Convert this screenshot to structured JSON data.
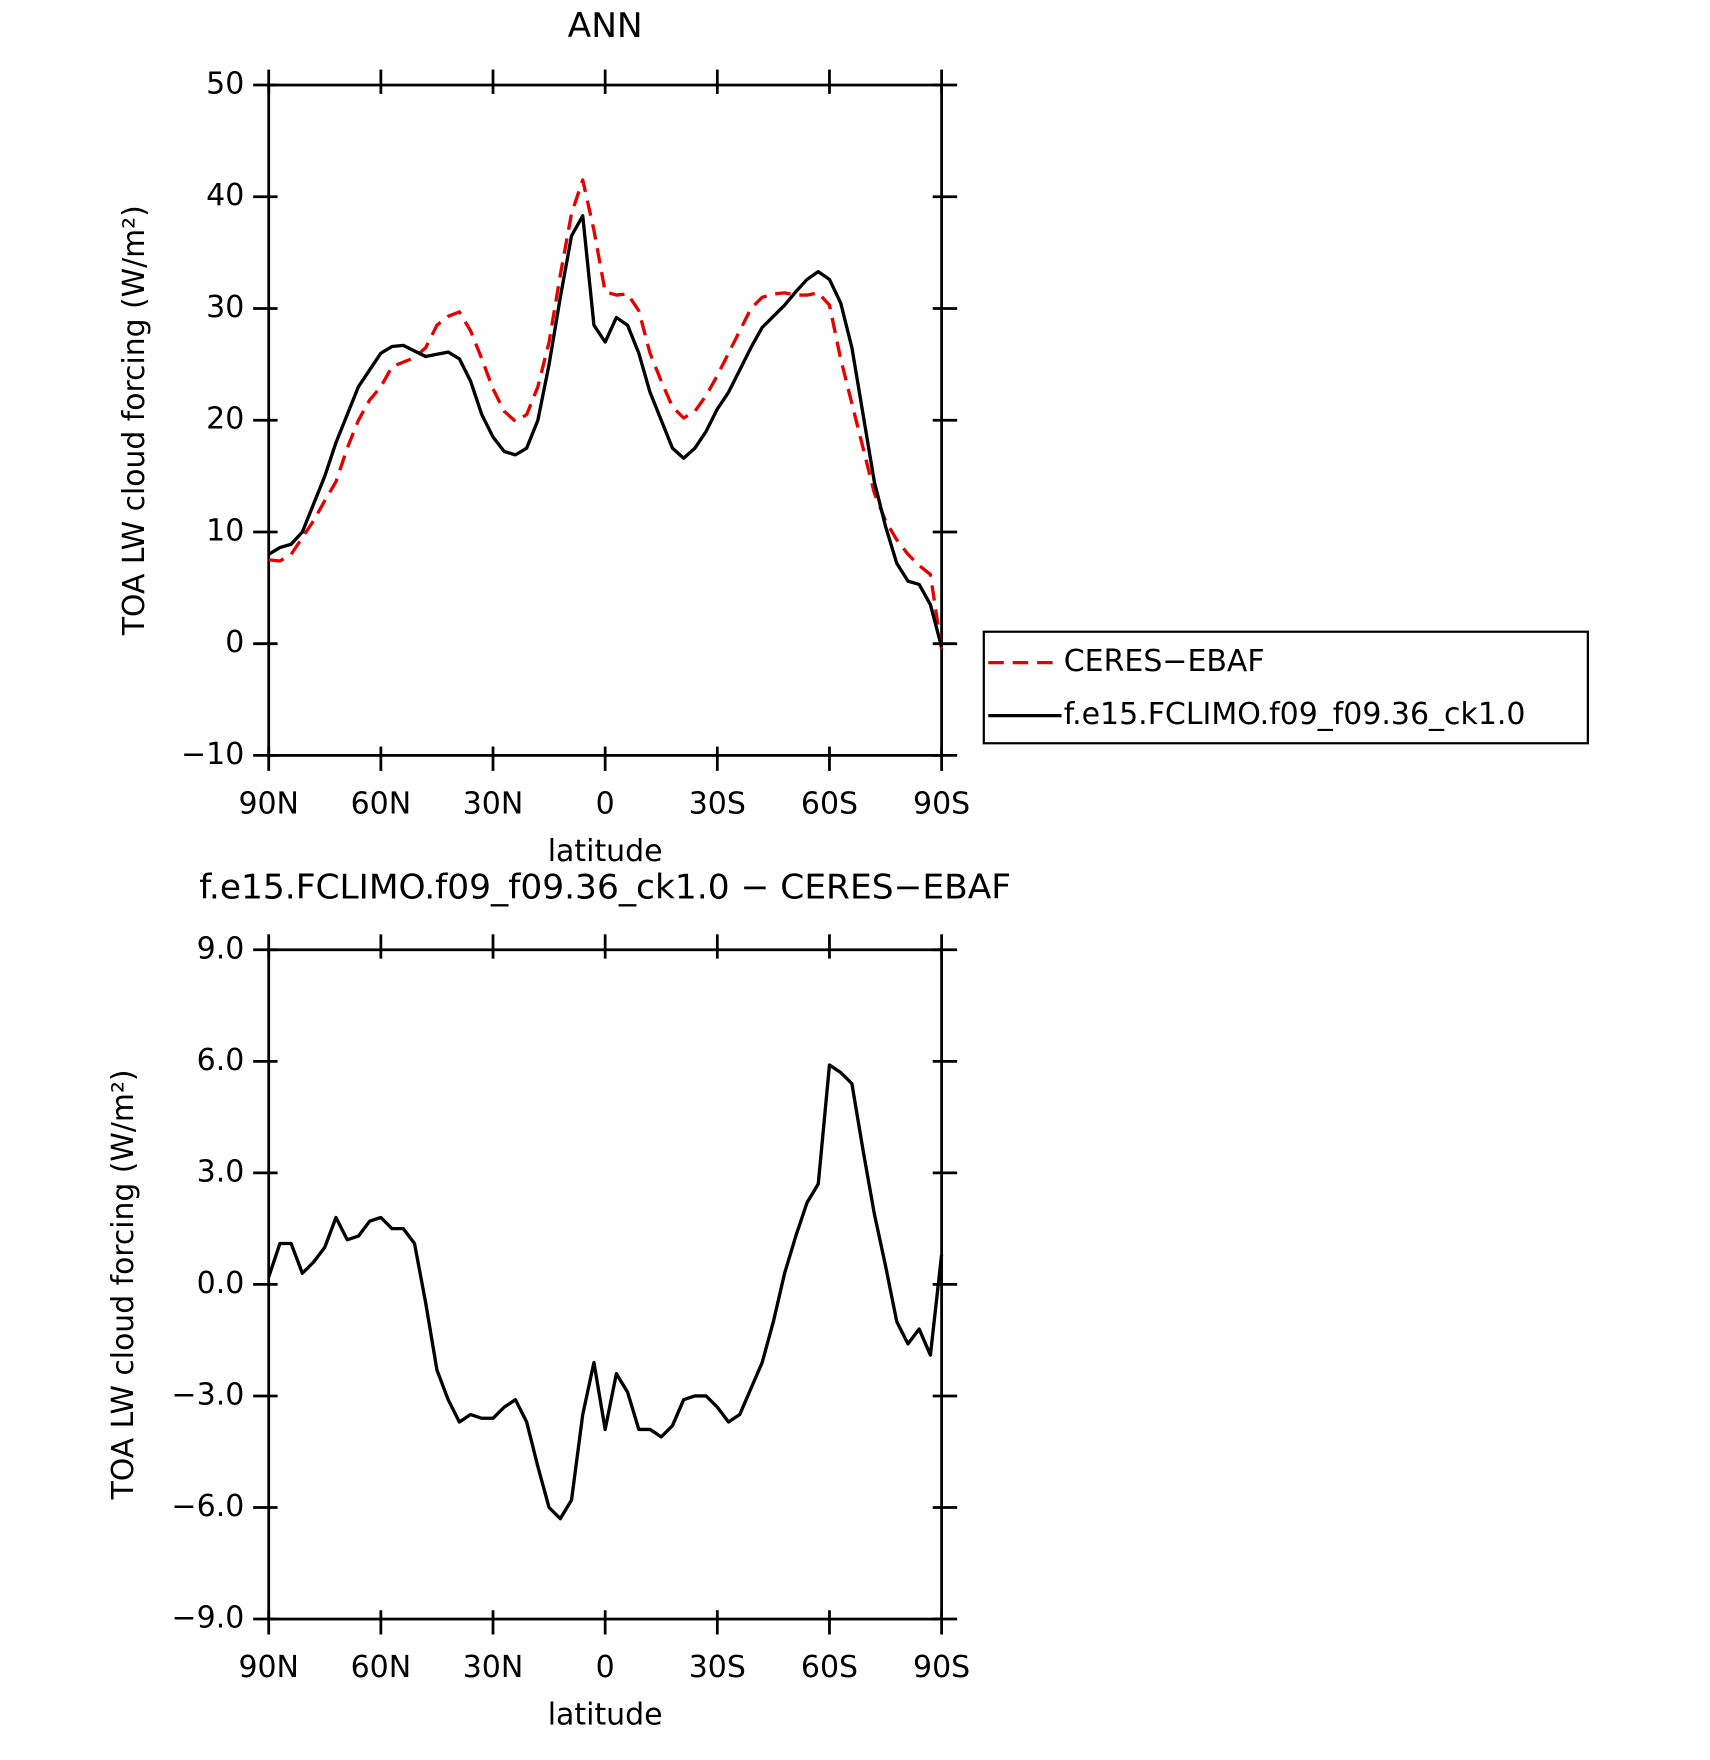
{
  "chart_data": [
    {
      "type": "line",
      "title": "ANN",
      "xlabel": "latitude",
      "ylabel": "TOA LW cloud forcing (W/m²)",
      "x": [
        90,
        87,
        84,
        81,
        78,
        75,
        72,
        69,
        66,
        63,
        60,
        57,
        54,
        51,
        48,
        45,
        42,
        39,
        36,
        33,
        30,
        27,
        24,
        21,
        18,
        15,
        12,
        9,
        6,
        3,
        0,
        -3,
        -6,
        -9,
        -12,
        -15,
        -18,
        -21,
        -24,
        -27,
        -30,
        -33,
        -36,
        -39,
        -42,
        -45,
        -48,
        -51,
        -54,
        -57,
        -60,
        -63,
        -66,
        -69,
        -72,
        -75,
        -78,
        -81,
        -84,
        -87,
        -90
      ],
      "series": [
        {
          "name": "CERES−EBAF",
          "color": "#e60000",
          "dash": "dashed",
          "values": [
            7.5,
            7.4,
            8.0,
            9.5,
            11,
            12.8,
            14.5,
            17.5,
            20,
            21.8,
            23,
            24.8,
            25.2,
            25.6,
            26.5,
            28.5,
            29.3,
            29.7,
            28,
            25.5,
            22.8,
            20.8,
            19.9,
            20.5,
            23,
            27,
            33,
            38.5,
            41.5,
            37,
            31.5,
            31.2,
            31.3,
            29.8,
            26,
            23.5,
            21.2,
            20.2,
            20.8,
            22.2,
            24,
            26,
            28,
            30,
            31,
            31.3,
            31.4,
            31.2,
            31.2,
            31.4,
            30.3,
            25.5,
            21.5,
            17.5,
            13.5,
            11,
            9.3,
            8,
            7,
            6.2,
            -0.5
          ]
        },
        {
          "name": "f.e15.FCLIMO.f09_f09.36_ck1.0",
          "color": "#000000",
          "dash": "solid",
          "values": [
            8,
            8.6,
            8.9,
            10,
            12.5,
            15,
            18,
            20.5,
            23,
            24.5,
            26,
            26.6,
            26.7,
            26.2,
            25.7,
            25.9,
            26.1,
            25.5,
            23.5,
            20.5,
            18.5,
            17.2,
            16.9,
            17.5,
            20,
            25,
            31,
            36.5,
            38.3,
            28.5,
            27,
            29.2,
            28.5,
            26,
            22.5,
            20,
            17.5,
            16.6,
            17.5,
            19,
            21,
            22.5,
            24.5,
            26.5,
            28.3,
            29.3,
            30.3,
            31.5,
            32.6,
            33.3,
            32.6,
            30.5,
            26.5,
            20.5,
            14.5,
            10.5,
            7.2,
            5.6,
            5.3,
            3.5,
            -0.3
          ]
        }
      ],
      "xlim": [
        90,
        -90
      ],
      "xticks": [
        {
          "value": 90,
          "label": "90N"
        },
        {
          "value": 60,
          "label": "60N"
        },
        {
          "value": 30,
          "label": "30N"
        },
        0,
        {
          "value": -30,
          "label": "30S"
        },
        {
          "value": -60,
          "label": "60S"
        },
        {
          "value": -90,
          "label": "90S"
        }
      ],
      "ylim": [
        -10,
        50
      ],
      "yticks": [
        {
          "value": -10,
          "label": "−10"
        },
        0,
        10,
        20,
        30,
        40,
        50
      ],
      "legend": "right"
    },
    {
      "type": "line",
      "title": "f.e15.FCLIMO.f09_f09.36_ck1.0 − CERES−EBAF",
      "xlabel": "latitude",
      "ylabel": "TOA LW cloud forcing (W/m²)",
      "x": [
        90,
        87,
        84,
        81,
        78,
        75,
        72,
        69,
        66,
        63,
        60,
        57,
        54,
        51,
        48,
        45,
        42,
        39,
        36,
        33,
        30,
        27,
        24,
        21,
        18,
        15,
        12,
        9,
        6,
        3,
        0,
        -3,
        -6,
        -9,
        -12,
        -15,
        -18,
        -21,
        -24,
        -27,
        -30,
        -33,
        -36,
        -39,
        -42,
        -45,
        -48,
        -51,
        -54,
        -57,
        -60,
        -63,
        -66,
        -69,
        -72,
        -75,
        -78,
        -81,
        -84,
        -87,
        -90
      ],
      "series": [
        {
          "color": "#000000",
          "dash": "solid",
          "values": [
            0.2,
            1.1,
            1.1,
            0.3,
            0.6,
            1.0,
            1.8,
            1.2,
            1.3,
            1.7,
            1.8,
            1.5,
            1.5,
            1.1,
            -0.5,
            -2.3,
            -3.1,
            -3.7,
            -3.5,
            -3.6,
            -3.6,
            -3.3,
            -3.1,
            -3.7,
            -4.9,
            -6.0,
            -6.3,
            -5.8,
            -3.5,
            -2.1,
            -3.9,
            -2.4,
            -2.9,
            -3.9,
            -3.9,
            -4.1,
            -3.8,
            -3.1,
            -3.0,
            -3.0,
            -3.3,
            -3.7,
            -3.5,
            -2.8,
            -2.1,
            -1.0,
            0.3,
            1.3,
            2.2,
            2.7,
            5.9,
            5.7,
            5.4,
            3.6,
            1.9,
            0.5,
            -1.0,
            -1.6,
            -1.2,
            -1.9,
            0.8
          ]
        }
      ],
      "xlim": [
        90,
        -90
      ],
      "xticks": [
        {
          "value": 90,
          "label": "90N"
        },
        {
          "value": 60,
          "label": "60N"
        },
        {
          "value": 30,
          "label": "30N"
        },
        0,
        {
          "value": -30,
          "label": "30S"
        },
        {
          "value": -60,
          "label": "60S"
        },
        {
          "value": -90,
          "label": "90S"
        }
      ],
      "ylim": [
        -9,
        9
      ],
      "yticks": [
        {
          "value": -9,
          "label": "−9.0"
        },
        {
          "value": -6,
          "label": "−6.0"
        },
        {
          "value": -3,
          "label": "−3.0"
        },
        {
          "value": 0,
          "label": "0.0"
        },
        {
          "value": 3,
          "label": "3.0"
        },
        {
          "value": 6,
          "label": "6.0"
        },
        {
          "value": 9,
          "label": "9.0"
        }
      ]
    }
  ]
}
